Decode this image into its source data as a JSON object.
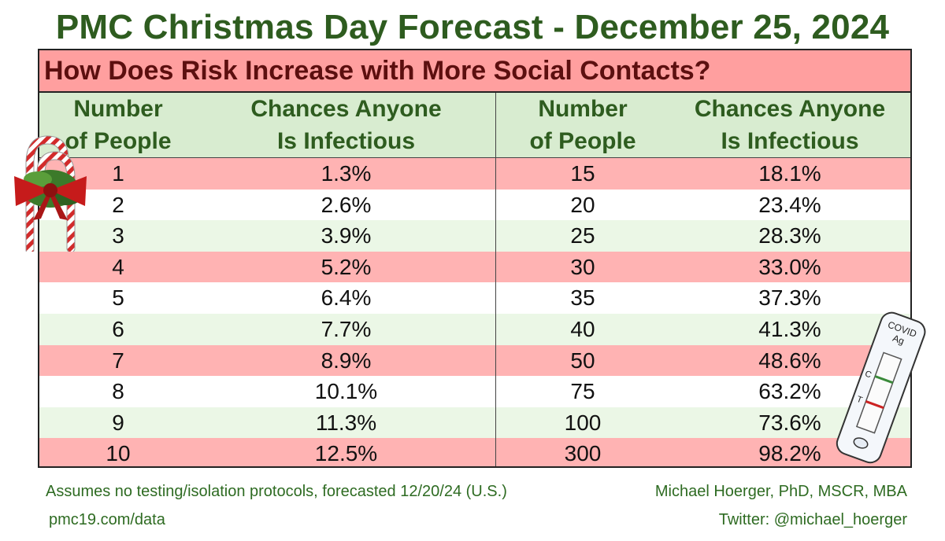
{
  "title": "PMC Christmas Day Forecast - December 25, 2024",
  "chart_data": {
    "type": "table",
    "subtitle": "How Does Risk Increase with More Social Contacts?",
    "columns": [
      {
        "line1": "Number",
        "line2": "of People"
      },
      {
        "line1": "Chances Anyone",
        "line2": "Is Infectious"
      },
      {
        "line1": "Number",
        "line2": "of People"
      },
      {
        "line1": "Chances Anyone",
        "line2": "Is Infectious"
      }
    ],
    "rows": [
      {
        "people_left": "1",
        "chance_left": "1.3%",
        "people_right": "15",
        "chance_right": "18.1%"
      },
      {
        "people_left": "2",
        "chance_left": "2.6%",
        "people_right": "20",
        "chance_right": "23.4%"
      },
      {
        "people_left": "3",
        "chance_left": "3.9%",
        "people_right": "25",
        "chance_right": "28.3%"
      },
      {
        "people_left": "4",
        "chance_left": "5.2%",
        "people_right": "30",
        "chance_right": "33.0%"
      },
      {
        "people_left": "5",
        "chance_left": "6.4%",
        "people_right": "35",
        "chance_right": "37.3%"
      },
      {
        "people_left": "6",
        "chance_left": "7.7%",
        "people_right": "40",
        "chance_right": "41.3%"
      },
      {
        "people_left": "7",
        "chance_left": "8.9%",
        "people_right": "50",
        "chance_right": "48.6%"
      },
      {
        "people_left": "8",
        "chance_left": "10.1%",
        "people_right": "75",
        "chance_right": "63.2%"
      },
      {
        "people_left": "9",
        "chance_left": "11.3%",
        "people_right": "100",
        "chance_right": "73.6%"
      },
      {
        "people_left": "10",
        "chance_left": "12.5%",
        "people_right": "300",
        "chance_right": "98.2%"
      }
    ],
    "row_pattern": [
      "red",
      "white",
      "green"
    ],
    "colors": {
      "title": "#2e5c1f",
      "subtitle_bg": "#ff9f9f",
      "subtitle_text": "#5c0f0f",
      "header_bg": "#d8ecd0",
      "row_red": "#ffb3b3",
      "row_white": "#ffffff",
      "row_green": "#ebf7e6",
      "footer_text": "#2e6b22"
    }
  },
  "footer": {
    "note": "Assumes no testing/isolation protocols, forecasted 12/20/24 (U.S.)",
    "link": "pmc19.com/data",
    "author": "Michael Hoerger, PhD, MSCR, MBA",
    "twitter": "Twitter: @michael_hoerger"
  },
  "decorations": {
    "left_icon": "candy-cane-bow-icon",
    "right_icon": "covid-test-strip-icon",
    "test_label_line1": "COVID",
    "test_label_line2": "Ag",
    "test_mark_c": "C",
    "test_mark_t": "T"
  }
}
